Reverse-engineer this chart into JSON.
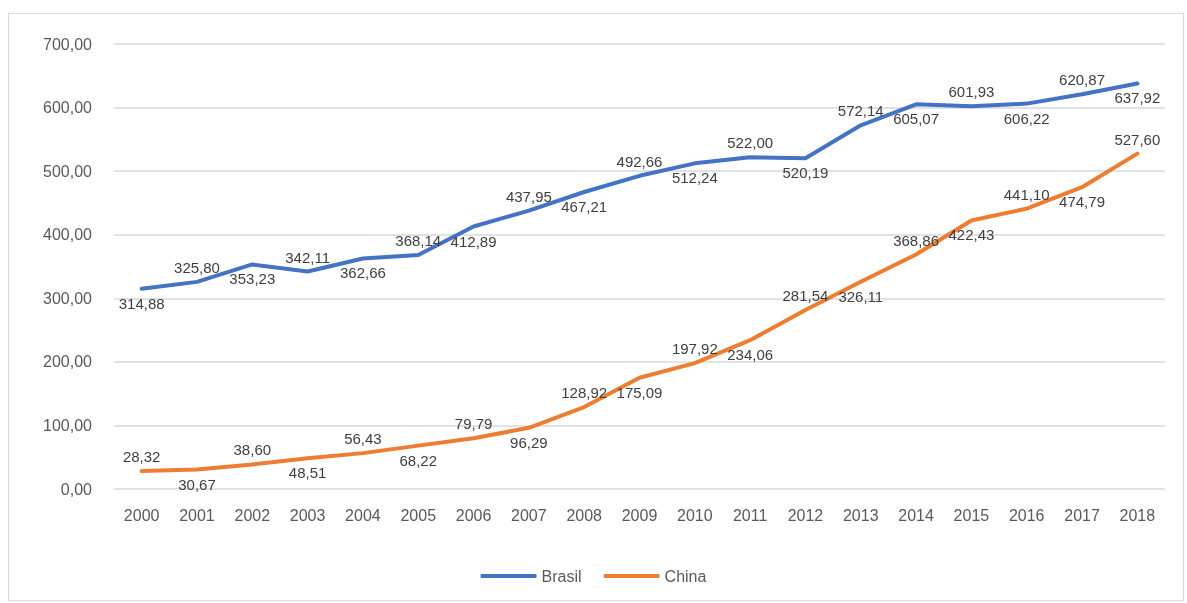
{
  "chart_data": {
    "type": "line",
    "categories": [
      "2000",
      "2001",
      "2002",
      "2003",
      "2004",
      "2005",
      "2006",
      "2007",
      "2008",
      "2009",
      "2010",
      "2011",
      "2012",
      "2013",
      "2014",
      "2015",
      "2016",
      "2017",
      "2018"
    ],
    "series": [
      {
        "name": "Brasil",
        "color": "#4472c4",
        "values": [
          314.88,
          325.8,
          353.23,
          342.11,
          362.66,
          368.14,
          412.89,
          437.95,
          467.21,
          492.66,
          512.24,
          522.0,
          520.19,
          572.14,
          605.07,
          601.93,
          606.22,
          620.87,
          637.92
        ],
        "value_labels": [
          "314,88",
          "325,80",
          "353,23",
          "342,11",
          "362,66",
          "368,14",
          "412,89",
          "437,95",
          "467,21",
          "492,66",
          "512,24",
          "522,00",
          "520,19",
          "572,14",
          "605,07",
          "601,93",
          "606,22",
          "620,87",
          "637,92"
        ]
      },
      {
        "name": "China",
        "color": "#ed7d31",
        "values": [
          28.32,
          30.67,
          38.6,
          48.51,
          56.43,
          68.22,
          79.79,
          96.29,
          128.92,
          175.09,
          197.92,
          234.06,
          281.54,
          326.11,
          368.86,
          422.43,
          441.1,
          474.79,
          527.6
        ],
        "value_labels": [
          "28,32",
          "30,67",
          "38,60",
          "48,51",
          "56,43",
          "68,22",
          "79,79",
          "96,29",
          "128,92",
          "175,09",
          "197,92",
          "234,06",
          "281,54",
          "326,11",
          "368,86",
          "422,43",
          "441,10",
          "474,79",
          "527,60"
        ]
      }
    ],
    "ylim": [
      0,
      700
    ],
    "yticks": [
      {
        "value": 0,
        "label": "0,00"
      },
      {
        "value": 100,
        "label": "100,00"
      },
      {
        "value": 200,
        "label": "200,00"
      },
      {
        "value": 300,
        "label": "300,00"
      },
      {
        "value": 400,
        "label": "400,00"
      },
      {
        "value": 500,
        "label": "500,00"
      },
      {
        "value": 600,
        "label": "600,00"
      },
      {
        "value": 700,
        "label": "700,00"
      }
    ],
    "grid": "y",
    "legend": "bottom",
    "marker": "none",
    "line_style": "solid"
  }
}
